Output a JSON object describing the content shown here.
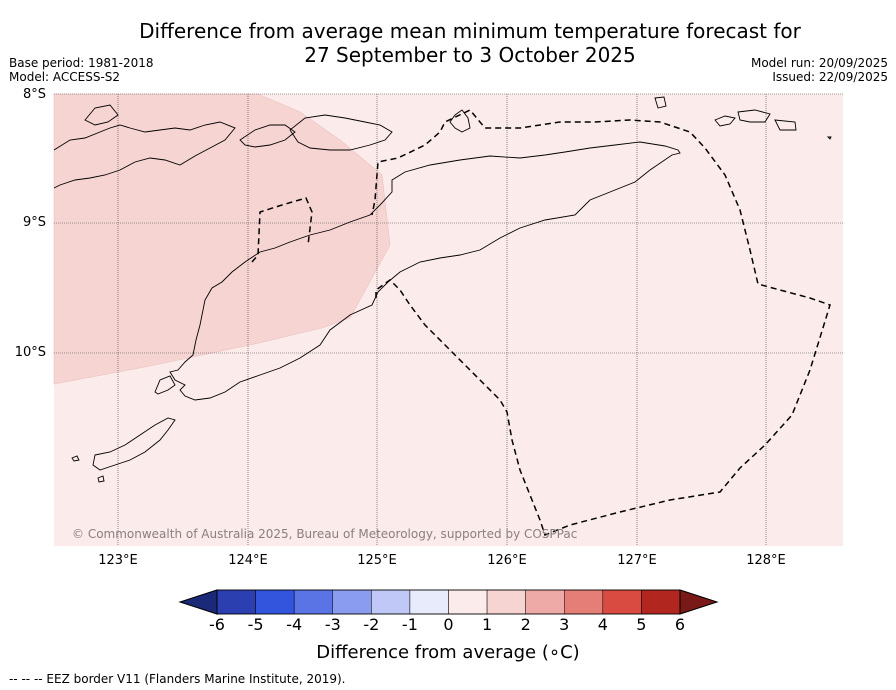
{
  "title_line1": "Difference from average mean minimum temperature forecast for",
  "title_line2": "27 September to 3 October 2025",
  "base_period": "Base period: 1981-2018",
  "model": "Model: ACCESS-S2",
  "model_run": "Model run: 20/09/2025",
  "issued": "Issued: 22/09/2025",
  "map": {
    "lat_labels": [
      "8°S",
      "9°S",
      "10°S"
    ],
    "lon_labels": [
      "123°E",
      "124°E",
      "125°E",
      "126°E",
      "127°E",
      "128°E"
    ],
    "background_anomaly_range": "0 to 1",
    "western_anomaly_range": "1 to 2",
    "copyright": "© Commonwealth of Australia 2025, Bureau of Meteorology, supported by COSPPac"
  },
  "colorbar": {
    "title": "Difference from average (∘C)",
    "ticks": [
      "-6",
      "-5",
      "-4",
      "-3",
      "-2",
      "-1",
      "0",
      "1",
      "2",
      "3",
      "4",
      "5",
      "6"
    ],
    "colors": [
      "#1a2a78",
      "#2c3fb0",
      "#3355dd",
      "#5a74e6",
      "#8a9cf0",
      "#bfc8f6",
      "#e8ebfb",
      "#fbebea",
      "#f6d4d2",
      "#eeaaa6",
      "#e47e76",
      "#d94a40",
      "#b1271f",
      "#7a1a18"
    ]
  },
  "footnote": "-- -- -- EEZ border V11 (Flanders Marine Institute, 2019)."
}
